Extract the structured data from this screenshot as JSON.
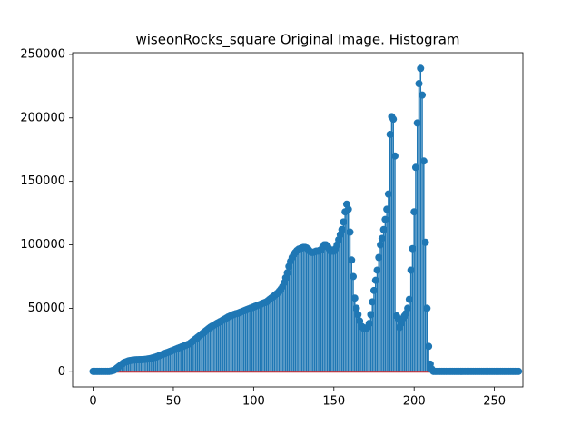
{
  "chart_data": {
    "type": "stem",
    "title": "wiseonRocks_square Original Image. Histogram",
    "color": "#1f77b4",
    "baseline_color": "#d62728",
    "xlim": [
      -12.75,
      267.75
    ],
    "xticks": [
      0,
      50,
      100,
      150,
      200,
      250
    ],
    "ylim": [
      -11970,
      251370
    ],
    "yticks": [
      0,
      50000,
      100000,
      150000,
      200000,
      250000
    ],
    "values": [
      300,
      300,
      300,
      300,
      300,
      300,
      300,
      300,
      300,
      300,
      300,
      500,
      800,
      1200,
      2000,
      3000,
      4000,
      5000,
      6000,
      7000,
      7500,
      8000,
      8500,
      8800,
      9000,
      9200,
      9300,
      9400,
      9400,
      9500,
      9500,
      9600,
      9700,
      9800,
      10000,
      10200,
      10500,
      10800,
      11200,
      11600,
      12000,
      12500,
      13000,
      13500,
      14000,
      14500,
      15000,
      15500,
      16000,
      16500,
      17000,
      17500,
      18000,
      18500,
      19000,
      19500,
      20000,
      20500,
      21000,
      21500,
      22000,
      23000,
      24000,
      25000,
      26000,
      27000,
      28000,
      29000,
      30000,
      31000,
      32000,
      33000,
      34000,
      35000,
      35800,
      36500,
      37200,
      38000,
      38700,
      39400,
      40000,
      40800,
      41500,
      42200,
      43000,
      43600,
      44200,
      44800,
      45300,
      45700,
      46000,
      46500,
      47000,
      47500,
      48000,
      48500,
      49000,
      49500,
      50000,
      50500,
      51000,
      51500,
      52000,
      52500,
      53000,
      53500,
      54000,
      54500,
      55000,
      56000,
      57000,
      58000,
      59000,
      60000,
      61000,
      62000,
      63500,
      65000,
      67000,
      70000,
      74000,
      78000,
      83000,
      87000,
      90000,
      92500,
      94000,
      95500,
      96500,
      97000,
      97500,
      98000,
      98000,
      97500,
      96500,
      95000,
      94000,
      94000,
      94500,
      95000,
      95000,
      95500,
      96000,
      98000,
      100000,
      100000,
      99000,
      97000,
      95000,
      95000,
      95000,
      97000,
      100000,
      104000,
      108000,
      112000,
      118000,
      126000,
      132000,
      128000,
      110000,
      88000,
      75000,
      58000,
      50000,
      45000,
      40000,
      36000,
      35000,
      34000,
      34000,
      35000,
      38000,
      45000,
      55000,
      64000,
      72000,
      80000,
      90000,
      100000,
      105000,
      112000,
      120000,
      128000,
      140000,
      187000,
      201000,
      199000,
      170000,
      44000,
      42000,
      35000,
      38000,
      42000,
      44000,
      46000,
      50000,
      57000,
      80000,
      97000,
      126000,
      161000,
      196000,
      227000,
      239000,
      218000,
      166000,
      102000,
      50000,
      20000,
      6000,
      2000,
      300,
      300,
      300,
      300,
      300,
      300,
      300,
      300,
      300,
      300,
      300,
      300,
      300,
      300,
      300,
      300,
      300,
      300,
      300,
      300,
      300,
      300,
      300,
      300,
      300,
      300,
      300,
      300,
      300,
      300,
      300,
      300,
      300,
      300,
      300,
      300,
      300,
      300,
      300,
      300,
      300,
      300,
      300,
      300,
      300,
      300,
      300,
      300,
      300,
      300,
      300,
      300,
      300,
      300
    ]
  }
}
